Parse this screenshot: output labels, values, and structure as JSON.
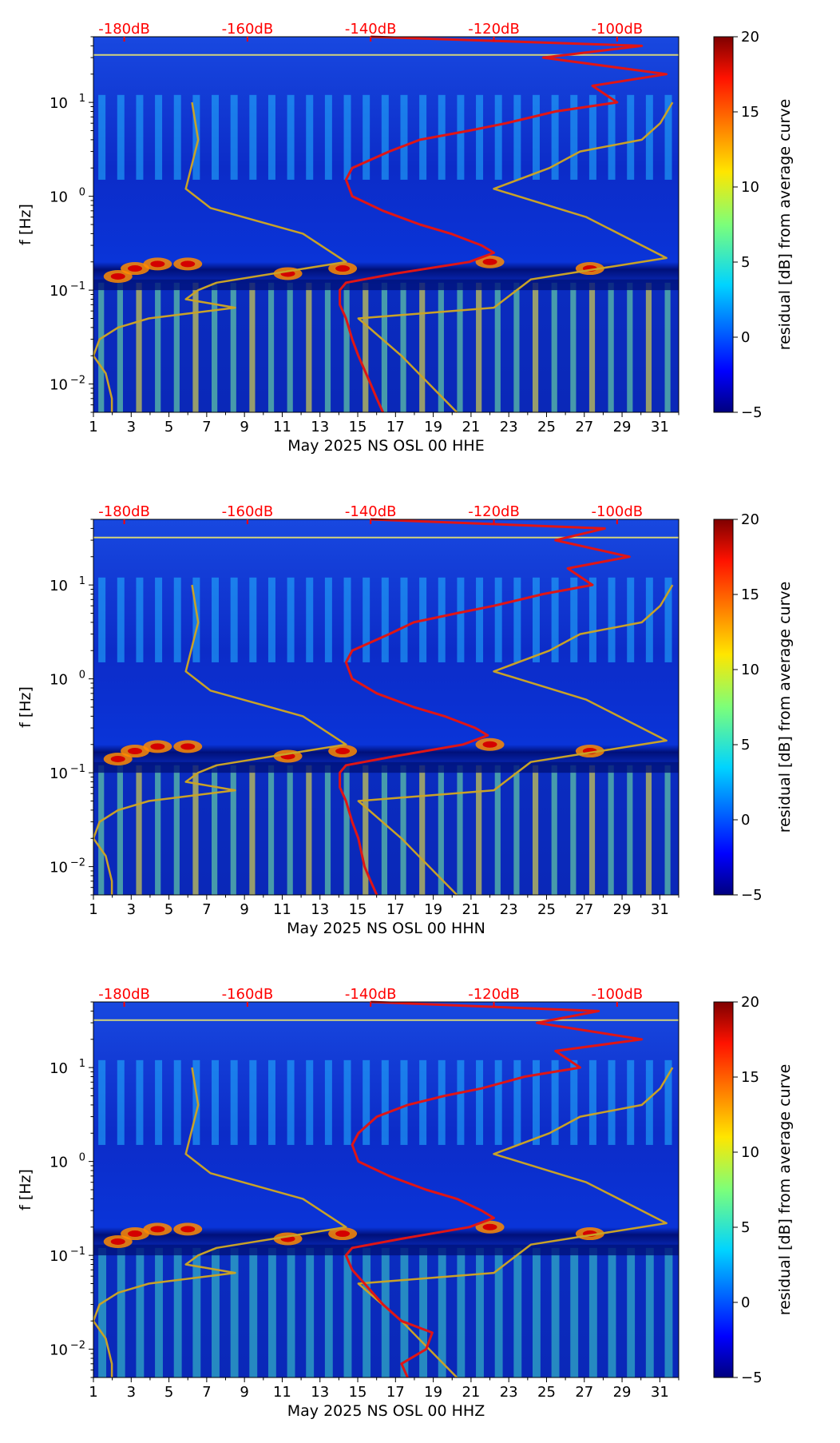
{
  "colors": {
    "db_label": "#ff0000",
    "red_curve": "#e01515",
    "noise_model": "#c9a227",
    "background": "#0a32d2"
  },
  "colorbar": {
    "label": "residual [dB] from average curve",
    "ticks": [
      "20",
      "15",
      "10",
      "5",
      "0",
      "−5"
    ],
    "vmin": -5,
    "vmax": 20
  },
  "chart_data": [
    {
      "type": "heatmap",
      "channel": "HHE",
      "xlabel": "May 2025 NS OSL 00 HHE",
      "ylabel": "f [Hz]",
      "xlim": [
        1,
        32
      ],
      "ylim": [
        0.005,
        50
      ],
      "yscale": "log",
      "x_ticks": [
        "1",
        "3",
        "5",
        "7",
        "9",
        "11",
        "13",
        "15",
        "17",
        "19",
        "21",
        "23",
        "25",
        "27",
        "29",
        "31"
      ],
      "y_ticks": [
        {
          "base": "10",
          "exp": "1"
        },
        {
          "base": "10",
          "exp": "0"
        },
        {
          "base": "10",
          "exp": "−1"
        },
        {
          "base": "10",
          "exp": "−2"
        }
      ],
      "db_ticks": [
        "-180dB",
        "-160dB",
        "-140dB",
        "-120dB",
        "-100dB"
      ],
      "db_range": [
        -185,
        -90
      ],
      "average_curve": {
        "freq": [
          50,
          40,
          30,
          20,
          15,
          10,
          8,
          6,
          5,
          4,
          3,
          2,
          1.5,
          1,
          0.7,
          0.5,
          0.4,
          0.3,
          0.25,
          0.2,
          0.15,
          0.12,
          0.1,
          0.07,
          0.05,
          0.03,
          0.02,
          0.01,
          0.007,
          0.005
        ],
        "db": [
          -140,
          -96,
          -112,
          -92,
          -104,
          -100,
          -110,
          -118,
          -124,
          -132,
          -137,
          -143,
          -144,
          -143,
          -138,
          -132,
          -127,
          -122,
          -120,
          -124,
          -136,
          -144,
          -145,
          -145,
          -144,
          -143,
          -142,
          -140,
          -139,
          -138
        ]
      },
      "noise_model_high": {
        "freq": [
          10,
          6,
          4,
          3,
          2,
          1.2,
          0.6,
          0.22,
          0.13,
          0.065,
          0.05,
          0.02,
          0.005
        ],
        "db": [
          -91,
          -93,
          -96,
          -106,
          -111,
          -120,
          -105,
          -92,
          -114,
          -120,
          -142,
          -135,
          -126
        ]
      },
      "noise_model_low": {
        "freq": [
          10,
          4,
          1.2,
          0.75,
          0.4,
          0.2,
          0.12,
          0.1,
          0.08,
          0.065,
          0.05,
          0.04,
          0.03,
          0.02,
          0.013,
          0.007,
          0.005
        ],
        "db": [
          -169,
          -168,
          -170,
          -166,
          -151,
          -144,
          -165,
          -168,
          -170,
          -162,
          -176,
          -181,
          -184,
          -185,
          -183,
          -182,
          -182
        ]
      }
    },
    {
      "type": "heatmap",
      "channel": "HHN",
      "xlabel": "May 2025 NS OSL 00 HHN",
      "ylabel": "f [Hz]",
      "xlim": [
        1,
        32
      ],
      "ylim": [
        0.005,
        50
      ],
      "yscale": "log",
      "x_ticks": [
        "1",
        "3",
        "5",
        "7",
        "9",
        "11",
        "13",
        "15",
        "17",
        "19",
        "21",
        "23",
        "25",
        "27",
        "29",
        "31"
      ],
      "y_ticks": [
        {
          "base": "10",
          "exp": "1"
        },
        {
          "base": "10",
          "exp": "0"
        },
        {
          "base": "10",
          "exp": "−1"
        },
        {
          "base": "10",
          "exp": "−2"
        }
      ],
      "db_ticks": [
        "-180dB",
        "-160dB",
        "-140dB",
        "-120dB",
        "-100dB"
      ],
      "db_range": [
        -185,
        -90
      ],
      "average_curve": {
        "freq": [
          50,
          40,
          30,
          20,
          15,
          10,
          8,
          6,
          5,
          4,
          3,
          2,
          1.5,
          1,
          0.7,
          0.5,
          0.4,
          0.3,
          0.25,
          0.2,
          0.15,
          0.12,
          0.1,
          0.07,
          0.05,
          0.03,
          0.02,
          0.01,
          0.007,
          0.005
        ],
        "db": [
          -140,
          -102,
          -110,
          -98,
          -108,
          -104,
          -112,
          -120,
          -126,
          -133,
          -137,
          -143,
          -144,
          -143,
          -139,
          -133,
          -128,
          -123,
          -121,
          -125,
          -136,
          -144,
          -145,
          -145,
          -144,
          -143,
          -142,
          -141,
          -140,
          -139
        ]
      },
      "noise_model_high": {
        "freq": [
          10,
          6,
          4,
          3,
          2,
          1.2,
          0.6,
          0.22,
          0.13,
          0.065,
          0.05,
          0.02,
          0.005
        ],
        "db": [
          -91,
          -93,
          -96,
          -106,
          -111,
          -120,
          -105,
          -92,
          -114,
          -120,
          -142,
          -135,
          -126
        ]
      },
      "noise_model_low": {
        "freq": [
          10,
          4,
          1.2,
          0.75,
          0.4,
          0.2,
          0.12,
          0.1,
          0.08,
          0.065,
          0.05,
          0.04,
          0.03,
          0.02,
          0.013,
          0.007,
          0.005
        ],
        "db": [
          -169,
          -168,
          -170,
          -166,
          -151,
          -144,
          -165,
          -168,
          -170,
          -162,
          -176,
          -181,
          -184,
          -185,
          -183,
          -182,
          -182
        ]
      }
    },
    {
      "type": "heatmap",
      "channel": "HHZ",
      "xlabel": "May 2025 NS OSL 00 HHZ",
      "ylabel": "f [Hz]",
      "xlim": [
        1,
        32
      ],
      "ylim": [
        0.005,
        50
      ],
      "yscale": "log",
      "x_ticks": [
        "1",
        "3",
        "5",
        "7",
        "9",
        "11",
        "13",
        "15",
        "17",
        "19",
        "21",
        "23",
        "25",
        "27",
        "29",
        "31"
      ],
      "y_ticks": [
        {
          "base": "10",
          "exp": "1"
        },
        {
          "base": "10",
          "exp": "0"
        },
        {
          "base": "10",
          "exp": "−1"
        },
        {
          "base": "10",
          "exp": "−2"
        }
      ],
      "db_ticks": [
        "-180dB",
        "-160dB",
        "-140dB",
        "-120dB",
        "-100dB"
      ],
      "db_range": [
        -185,
        -90
      ],
      "average_curve": {
        "freq": [
          50,
          40,
          30,
          20,
          15,
          10,
          8,
          6,
          5,
          4,
          3,
          2,
          1.5,
          1,
          0.7,
          0.5,
          0.4,
          0.3,
          0.25,
          0.2,
          0.15,
          0.12,
          0.1,
          0.07,
          0.05,
          0.03,
          0.02,
          0.015,
          0.01,
          0.007,
          0.005
        ],
        "db": [
          -140,
          -103,
          -113,
          -96,
          -110,
          -106,
          -115,
          -122,
          -128,
          -134,
          -139,
          -142,
          -143,
          -142,
          -137,
          -131,
          -126,
          -122,
          -120,
          -124,
          -135,
          -143,
          -144,
          -143,
          -141,
          -138,
          -135,
          -130,
          -131,
          -135,
          -134
        ]
      },
      "noise_model_high": {
        "freq": [
          10,
          6,
          4,
          3,
          2,
          1.2,
          0.6,
          0.22,
          0.13,
          0.065,
          0.05,
          0.02,
          0.005
        ],
        "db": [
          -91,
          -93,
          -96,
          -106,
          -111,
          -120,
          -105,
          -92,
          -114,
          -120,
          -142,
          -135,
          -126
        ]
      },
      "noise_model_low": {
        "freq": [
          10,
          4,
          1.2,
          0.75,
          0.4,
          0.2,
          0.12,
          0.1,
          0.08,
          0.065,
          0.05,
          0.04,
          0.03,
          0.02,
          0.013,
          0.007,
          0.005
        ],
        "db": [
          -169,
          -168,
          -170,
          -166,
          -151,
          -144,
          -165,
          -168,
          -170,
          -162,
          -176,
          -181,
          -184,
          -185,
          -183,
          -182,
          -182
        ]
      }
    }
  ]
}
